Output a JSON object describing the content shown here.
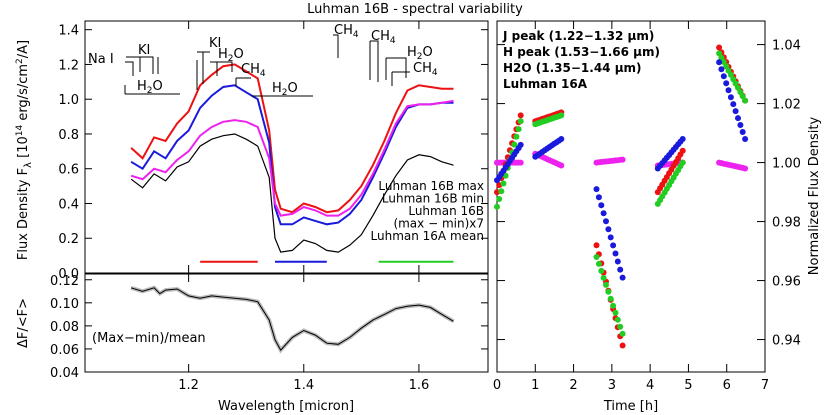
{
  "title": "Luhman 16B - spectral variability",
  "colors": {
    "red": "#ee1111",
    "blue": "#1a1adc",
    "magenta": "#ee22ee",
    "green": "#22cc22",
    "black": "#000000",
    "gray": "#bbbbbb"
  },
  "chart_data": [
    {
      "id": "spectra",
      "type": "line",
      "xlim": [
        1.02,
        1.72
      ],
      "ylim": [
        0.0,
        1.45
      ],
      "ylabel": "Flux Density F",
      "ylabel_sub": "λ",
      "ylabel_unit": "[10",
      "ylabel_exp": "14",
      "ylabel_rest": " erg/s/cm",
      "ylabel_exp2": "2",
      "ylabel_end": "/A]",
      "yticks": [
        0.0,
        0.2,
        0.4,
        0.6,
        0.8,
        1.0,
        1.2,
        1.4
      ],
      "ytick_labels": [
        "0.0",
        "0.2",
        "0.4",
        "0.6",
        "0.8",
        "1.0",
        "1.2",
        "1.4"
      ],
      "x": [
        1.1,
        1.12,
        1.14,
        1.16,
        1.18,
        1.2,
        1.22,
        1.24,
        1.26,
        1.28,
        1.3,
        1.32,
        1.34,
        1.35,
        1.36,
        1.38,
        1.4,
        1.42,
        1.44,
        1.46,
        1.48,
        1.5,
        1.52,
        1.54,
        1.56,
        1.58,
        1.6,
        1.62,
        1.64,
        1.66
      ],
      "series": [
        {
          "name": "Luhman 16B max",
          "color": "red",
          "values": [
            0.72,
            0.66,
            0.78,
            0.76,
            0.86,
            0.93,
            1.08,
            1.14,
            1.19,
            1.2,
            1.16,
            1.12,
            0.82,
            0.48,
            0.37,
            0.35,
            0.4,
            0.38,
            0.35,
            0.36,
            0.42,
            0.5,
            0.62,
            0.76,
            0.92,
            1.05,
            1.08,
            1.07,
            1.06,
            1.06
          ]
        },
        {
          "name": "Luhman 16B min",
          "color": "blue",
          "values": [
            0.64,
            0.6,
            0.7,
            0.66,
            0.76,
            0.82,
            0.95,
            1.02,
            1.07,
            1.08,
            1.04,
            1.0,
            0.75,
            0.38,
            0.28,
            0.28,
            0.32,
            0.3,
            0.28,
            0.29,
            0.34,
            0.42,
            0.55,
            0.69,
            0.84,
            0.95,
            0.97,
            0.97,
            0.98,
            0.98
          ]
        },
        {
          "name": "Luhman 16A mean",
          "color": "magenta",
          "values": [
            0.56,
            0.54,
            0.6,
            0.58,
            0.65,
            0.7,
            0.79,
            0.84,
            0.87,
            0.88,
            0.87,
            0.84,
            0.66,
            0.4,
            0.33,
            0.34,
            0.38,
            0.36,
            0.33,
            0.33,
            0.37,
            0.45,
            0.57,
            0.71,
            0.86,
            0.96,
            0.97,
            0.97,
            0.98,
            0.99
          ]
        },
        {
          "name": "(max - min)x7",
          "color": "black",
          "values": [
            0.54,
            0.49,
            0.57,
            0.53,
            0.61,
            0.64,
            0.73,
            0.77,
            0.79,
            0.8,
            0.77,
            0.73,
            0.55,
            0.2,
            0.12,
            0.13,
            0.19,
            0.17,
            0.13,
            0.12,
            0.16,
            0.22,
            0.33,
            0.45,
            0.56,
            0.65,
            0.68,
            0.67,
            0.64,
            0.62
          ]
        }
      ],
      "legend": {
        "position": "center-right",
        "lines": [
          {
            "text": "Luhman 16B max",
            "color": "red"
          },
          {
            "text": "Luhman 16B min",
            "color": "blue"
          },
          {
            "text": "Luhman 16B",
            "color": "black"
          },
          {
            "text": "(max − min)x7",
            "color": "black"
          },
          {
            "text": "Luhman 16A mean",
            "color": "magenta"
          }
        ]
      },
      "bands": [
        {
          "color": "red",
          "x": [
            1.22,
            1.32
          ]
        },
        {
          "color": "blue",
          "x": [
            1.35,
            1.44
          ]
        },
        {
          "color": "green",
          "x": [
            1.53,
            1.66
          ]
        }
      ],
      "features": {
        "nai": "Na I",
        "ki1": "KI",
        "ki2": "KI",
        "h2o_1": "H",
        "h2o_2": "H",
        "h2o_3": "H",
        "h2o_4": "H",
        "ch4_1": "CH",
        "ch4_2": "CH",
        "ch4_3": "CH",
        "ch4_4": "CH",
        "sub2": "2",
        "subO": "O",
        "sub4": "4"
      }
    },
    {
      "id": "ratio",
      "type": "line",
      "xlim": [
        1.02,
        1.72
      ],
      "ylim": [
        0.04,
        0.125
      ],
      "xlabel": "Wavelength [micron]",
      "ylabel": "ΔF/<F>",
      "annotation": "(Max−min)/mean",
      "xticks": [
        1.2,
        1.4,
        1.6
      ],
      "xtick_labels": [
        "1.2",
        "1.4",
        "1.6"
      ],
      "yticks": [
        0.04,
        0.06,
        0.08,
        0.1,
        0.12
      ],
      "ytick_labels": [
        "0.04",
        "0.06",
        "0.08",
        "0.10",
        "0.12"
      ],
      "x": [
        1.1,
        1.12,
        1.14,
        1.15,
        1.16,
        1.18,
        1.2,
        1.22,
        1.24,
        1.26,
        1.28,
        1.3,
        1.32,
        1.34,
        1.35,
        1.36,
        1.38,
        1.4,
        1.42,
        1.44,
        1.46,
        1.48,
        1.5,
        1.52,
        1.54,
        1.56,
        1.58,
        1.6,
        1.62,
        1.64,
        1.66
      ],
      "values": [
        0.113,
        0.11,
        0.113,
        0.108,
        0.111,
        0.112,
        0.106,
        0.104,
        0.106,
        0.105,
        0.104,
        0.103,
        0.101,
        0.085,
        0.068,
        0.059,
        0.07,
        0.076,
        0.072,
        0.065,
        0.064,
        0.07,
        0.078,
        0.085,
        0.09,
        0.095,
        0.097,
        0.098,
        0.096,
        0.09,
        0.084
      ]
    },
    {
      "id": "timeseries",
      "type": "scatter",
      "xlim": [
        0,
        7
      ],
      "ylim": [
        0.929,
        1.048
      ],
      "xlabel": "Time [h]",
      "ylabel": "Normalized Flux Density",
      "xticks": [
        0,
        1,
        2,
        3,
        4,
        5,
        6,
        7
      ],
      "xtick_labels": [
        "0",
        "1",
        "2",
        "3",
        "4",
        "5",
        "6",
        "7"
      ],
      "yticks": [
        0.94,
        0.96,
        0.98,
        1.0,
        1.02,
        1.04
      ],
      "ytick_labels": [
        "0.94",
        "0.96",
        "0.98",
        "1.00",
        "1.02",
        "1.04"
      ],
      "legend": {
        "position": "top-left",
        "entries": [
          {
            "text": "J peak (1.22−1.32 μm)",
            "color": "red"
          },
          {
            "text": "H peak (1.53−1.66 μm)",
            "color": "green"
          },
          {
            "text": "H2O (1.35−1.44 μm)",
            "color": "blue"
          },
          {
            "text": "Luhman 16A",
            "color": "magenta"
          }
        ]
      },
      "series": [
        {
          "name": "Luhman 16A",
          "color": "magenta",
          "segments": [
            [
              0.0,
              0.62,
              1.0,
              1.0
            ],
            [
              1.0,
              1.68,
              1.003,
              0.999
            ],
            [
              2.6,
              3.28,
              1.0,
              1.001
            ],
            [
              4.2,
              4.85,
              0.999,
              1.0
            ],
            [
              5.8,
              6.48,
              1.0,
              0.998
            ]
          ]
        },
        {
          "name": "J peak (1.22-1.32 μm)",
          "color": "red",
          "segments": [
            [
              0.0,
              0.62,
              0.99,
              1.016
            ],
            [
              1.0,
              1.68,
              1.014,
              1.017
            ],
            [
              2.6,
              3.28,
              0.972,
              0.938
            ],
            [
              4.2,
              4.85,
              0.99,
              1.004
            ],
            [
              5.8,
              6.48,
              1.039,
              1.021
            ]
          ]
        },
        {
          "name": "H peak (1.53-1.66 μm)",
          "color": "green",
          "segments": [
            [
              0.0,
              0.62,
              0.985,
              1.014
            ],
            [
              1.0,
              1.68,
              1.013,
              1.016
            ],
            [
              2.6,
              3.28,
              0.968,
              0.942
            ],
            [
              4.2,
              4.85,
              0.986,
              1.0
            ],
            [
              5.8,
              6.48,
              1.037,
              1.021
            ]
          ]
        },
        {
          "name": "H2O (1.35-1.44 μm)",
          "color": "blue",
          "segments": [
            [
              0.0,
              0.62,
              0.994,
              1.006
            ],
            [
              1.0,
              1.68,
              1.002,
              1.008
            ],
            [
              2.6,
              3.28,
              0.991,
              0.961
            ],
            [
              4.2,
              4.85,
              0.998,
              1.008
            ],
            [
              5.8,
              6.48,
              1.034,
              1.008
            ]
          ]
        }
      ]
    }
  ]
}
